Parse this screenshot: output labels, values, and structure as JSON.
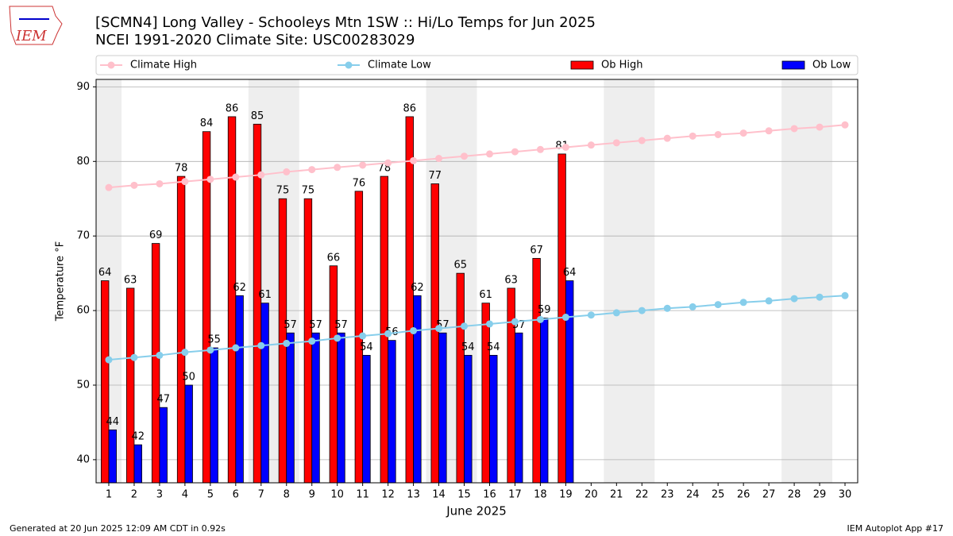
{
  "logo_text": "IEM",
  "footer_left": "Generated at 20 Jun 2025 12:09 AM CDT in 0.92s",
  "footer_right": "IEM Autoplot App #17",
  "chart_data": {
    "type": "bar",
    "title": "[SCMN4] Long Valley - Schooleys Mtn 1SW :: Hi/Lo Temps for Jun 2025",
    "subtitle": "NCEI 1991-2020 Climate Site: USC00283029",
    "x_label": "June 2025",
    "y_label": "Temperature °F",
    "x": [
      1,
      2,
      3,
      4,
      5,
      6,
      7,
      8,
      9,
      10,
      11,
      12,
      13,
      14,
      15,
      16,
      17,
      18,
      19,
      20,
      21,
      22,
      23,
      24,
      25,
      26,
      27,
      28,
      29,
      30
    ],
    "xlim": [
      0.5,
      30.5
    ],
    "xticks": [
      1,
      2,
      3,
      4,
      5,
      6,
      7,
      8,
      9,
      10,
      11,
      12,
      13,
      14,
      15,
      16,
      17,
      18,
      19,
      20,
      21,
      22,
      23,
      24,
      25,
      26,
      27,
      28,
      29,
      30
    ],
    "ylim": [
      36.9,
      91
    ],
    "yticks": [
      40,
      50,
      60,
      70,
      80,
      90
    ],
    "grid": true,
    "legend": "top",
    "shaded_spans": [
      [
        0.5,
        1.5
      ],
      [
        6.5,
        8.5
      ],
      [
        13.5,
        15.5
      ],
      [
        20.5,
        22.5
      ],
      [
        27.5,
        29.5
      ]
    ],
    "series": [
      {
        "name": "Climate High",
        "type": "line",
        "color": "#ffc0cb",
        "values": [
          76.5,
          76.8,
          77.0,
          77.3,
          77.6,
          77.9,
          78.2,
          78.6,
          78.9,
          79.2,
          79.5,
          79.8,
          80.1,
          80.4,
          80.7,
          81.0,
          81.3,
          81.6,
          81.9,
          82.2,
          82.5,
          82.8,
          83.1,
          83.4,
          83.6,
          83.8,
          84.1,
          84.4,
          84.6,
          84.9
        ]
      },
      {
        "name": "Climate Low",
        "type": "line",
        "color": "#87ceeb",
        "values": [
          53.4,
          53.7,
          54.0,
          54.4,
          54.7,
          55.0,
          55.3,
          55.6,
          55.9,
          56.3,
          56.6,
          56.9,
          57.3,
          57.6,
          57.9,
          58.2,
          58.5,
          58.8,
          59.1,
          59.4,
          59.7,
          60.0,
          60.3,
          60.5,
          60.8,
          61.1,
          61.3,
          61.6,
          61.8,
          62.0
        ]
      },
      {
        "name": "Ob High",
        "type": "bar",
        "color": "#ff0000",
        "values": [
          64,
          63,
          69,
          78,
          84,
          86,
          85,
          75,
          75,
          66,
          76,
          78,
          86,
          77,
          65,
          61,
          63,
          67,
          81,
          null,
          null,
          null,
          null,
          null,
          null,
          null,
          null,
          null,
          null,
          null
        ]
      },
      {
        "name": "Ob Low",
        "type": "bar",
        "color": "#0000ff",
        "values": [
          44,
          42,
          47,
          50,
          55,
          62,
          61,
          57,
          57,
          57,
          54,
          56,
          62,
          57,
          54,
          54,
          57,
          59,
          64,
          null,
          null,
          null,
          null,
          null,
          null,
          null,
          null,
          null,
          null,
          null
        ]
      }
    ]
  }
}
